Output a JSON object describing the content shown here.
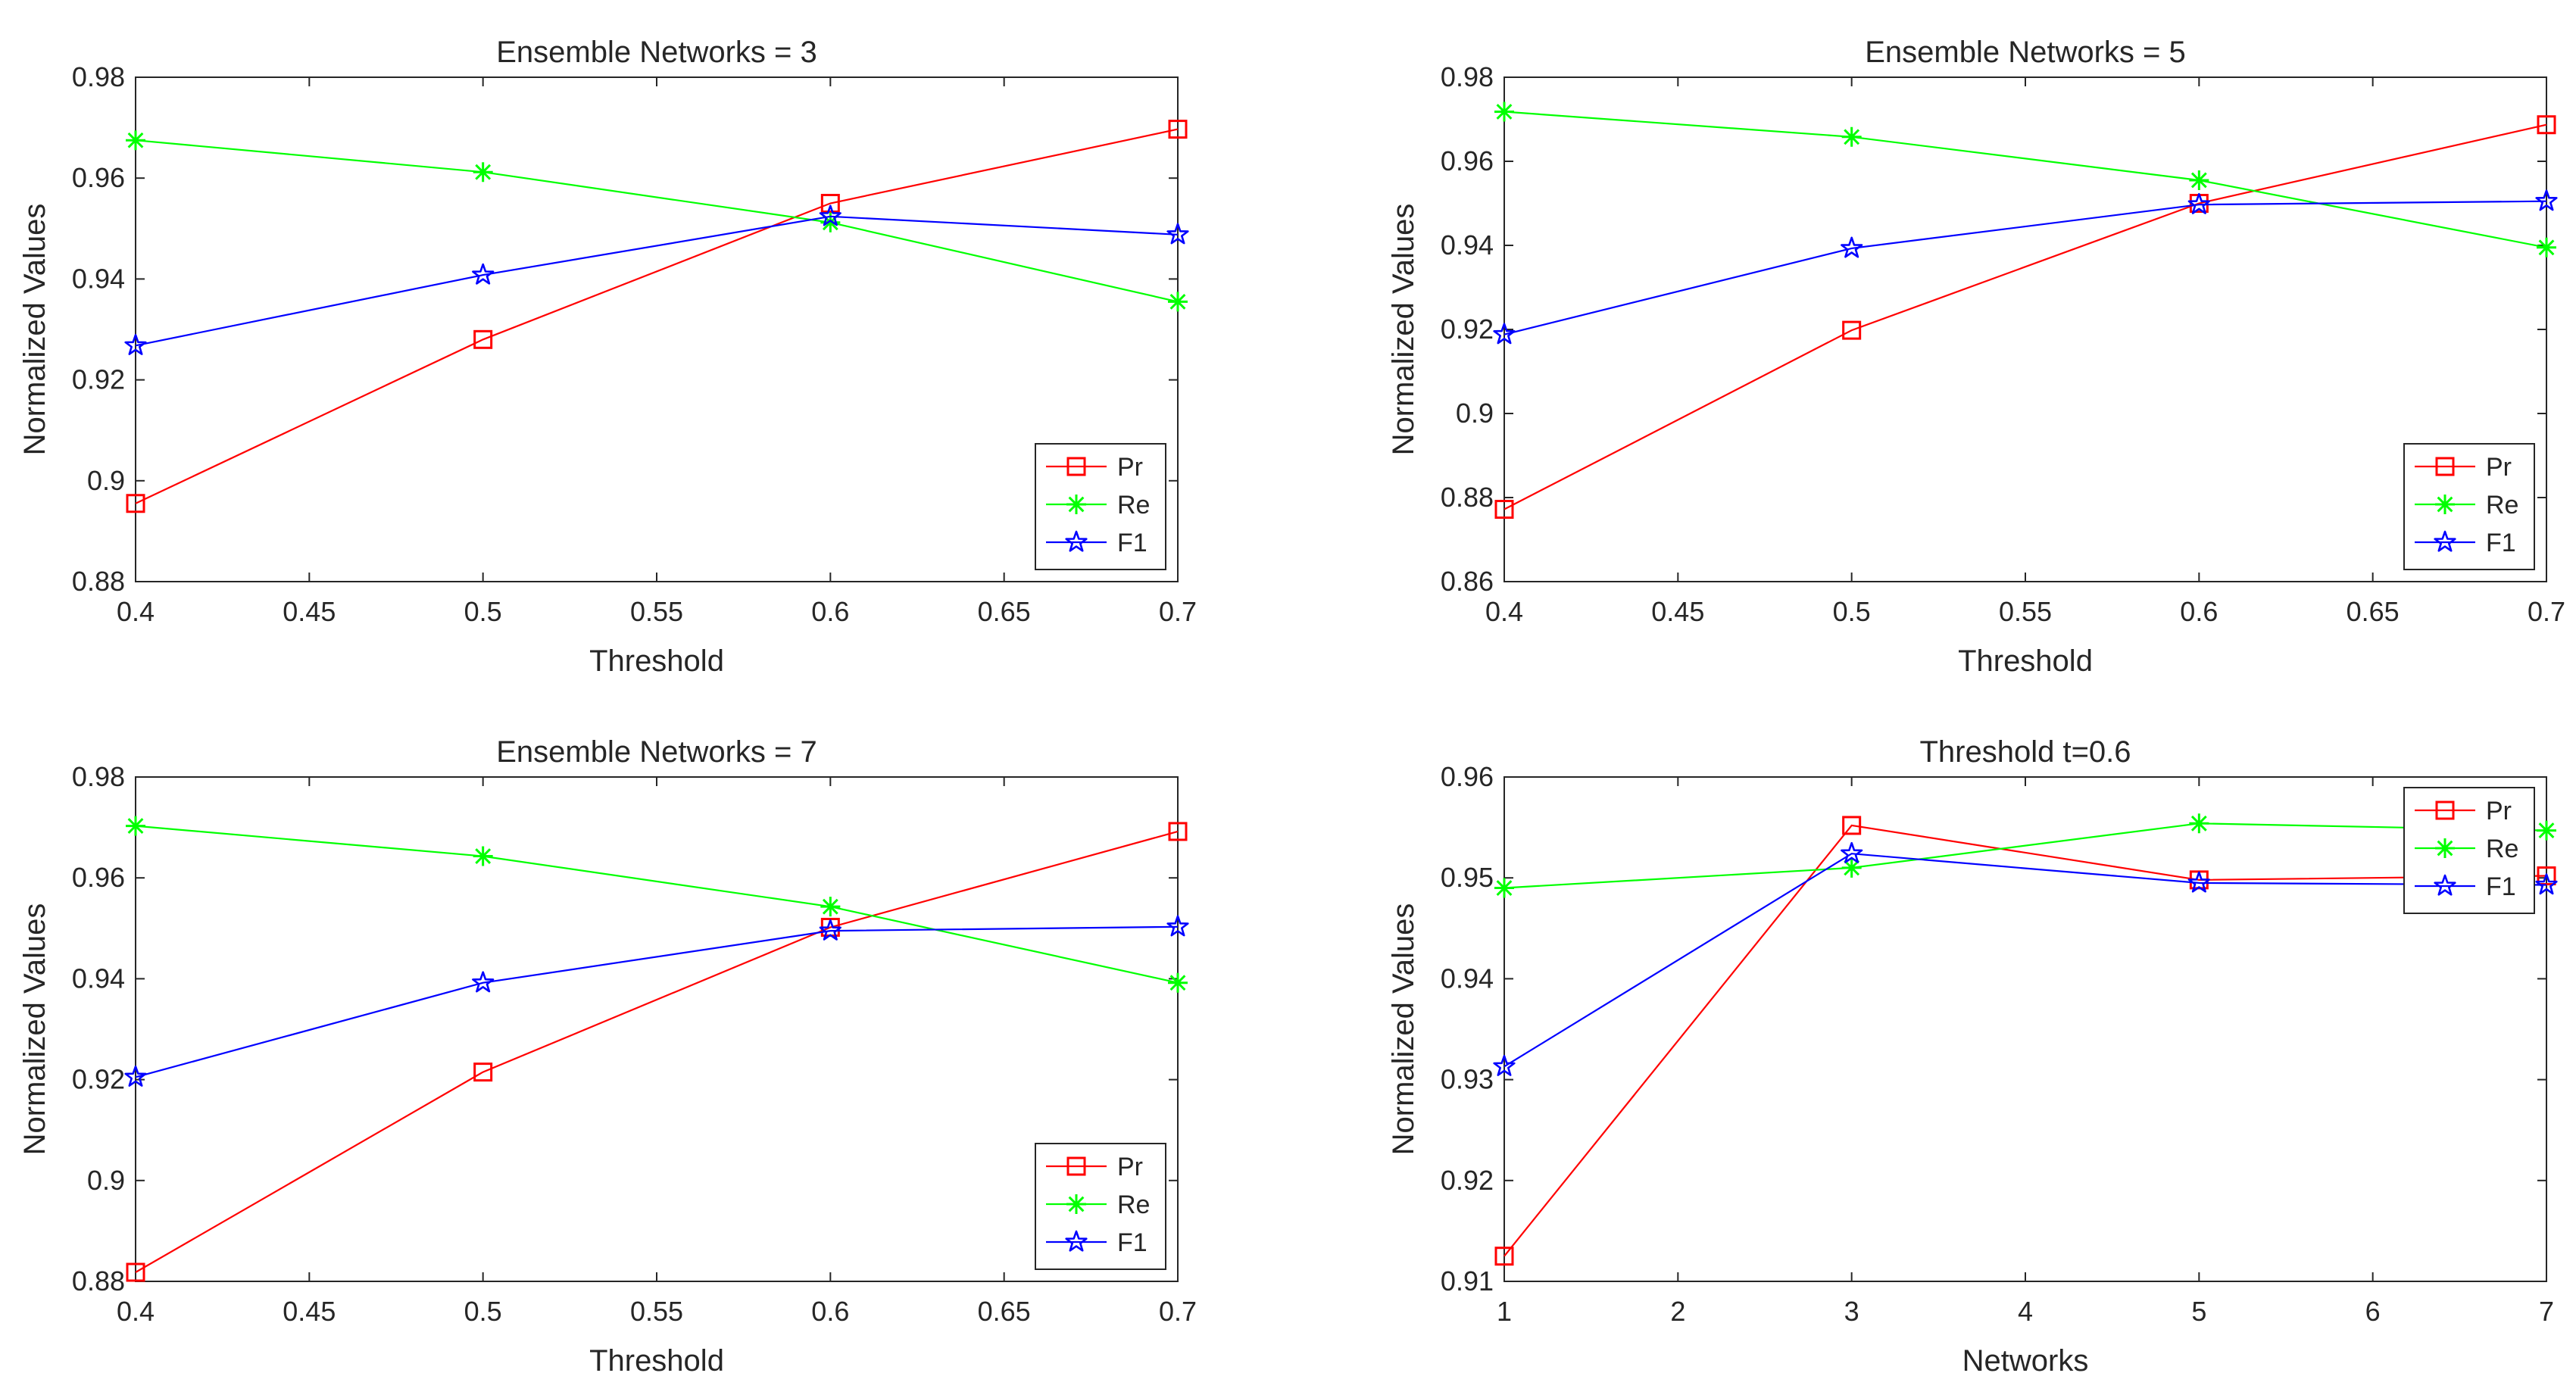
{
  "chart_data": [
    {
      "type": "line",
      "title": "Ensemble Networks = 3",
      "xlabel": "Threshold",
      "ylabel": "Normalized Values",
      "xlim": [
        0.4,
        0.7
      ],
      "ylim": [
        0.88,
        0.98
      ],
      "xticks": [
        0.4,
        0.45,
        0.5,
        0.55,
        0.6,
        0.65,
        0.7
      ],
      "xtick_labels": [
        "0.4",
        "0.45",
        "0.5",
        "0.55",
        "0.6",
        "0.65",
        "0.7"
      ],
      "yticks": [
        0.88,
        0.9,
        0.92,
        0.94,
        0.96,
        0.98
      ],
      "ytick_labels": [
        "0.88",
        "0.9",
        "0.92",
        "0.94",
        "0.96",
        "0.98"
      ],
      "x": [
        0.4,
        0.5,
        0.6,
        0.7
      ],
      "legend_position": "bottom-right",
      "series": [
        {
          "name": "Pr",
          "color": "#ff0000",
          "marker": "square",
          "values": [
            0.8955,
            0.928,
            0.955,
            0.9697
          ]
        },
        {
          "name": "Re",
          "color": "#00ff00",
          "marker": "asterisk",
          "values": [
            0.9675,
            0.9612,
            0.9512,
            0.9355
          ]
        },
        {
          "name": "F1",
          "color": "#0000ff",
          "marker": "star",
          "values": [
            0.9268,
            0.9408,
            0.9524,
            0.9488
          ]
        }
      ]
    },
    {
      "type": "line",
      "title": "Ensemble Networks = 5",
      "xlabel": "Threshold",
      "ylabel": "Normalized Values",
      "xlim": [
        0.4,
        0.7
      ],
      "ylim": [
        0.86,
        0.98
      ],
      "xticks": [
        0.4,
        0.45,
        0.5,
        0.55,
        0.6,
        0.65,
        0.7
      ],
      "xtick_labels": [
        "0.4",
        "0.45",
        "0.5",
        "0.55",
        "0.6",
        "0.65",
        "0.7"
      ],
      "yticks": [
        0.86,
        0.88,
        0.9,
        0.92,
        0.94,
        0.96,
        0.98
      ],
      "ytick_labels": [
        "0.86",
        "0.88",
        "0.9",
        "0.92",
        "0.94",
        "0.96",
        "0.98"
      ],
      "x": [
        0.4,
        0.5,
        0.6,
        0.7
      ],
      "legend_position": "bottom-right",
      "series": [
        {
          "name": "Pr",
          "color": "#ff0000",
          "marker": "square",
          "values": [
            0.8772,
            0.9198,
            0.95,
            0.9687
          ]
        },
        {
          "name": "Re",
          "color": "#00ff00",
          "marker": "asterisk",
          "values": [
            0.9718,
            0.9658,
            0.9555,
            0.9395
          ]
        },
        {
          "name": "F1",
          "color": "#0000ff",
          "marker": "star",
          "values": [
            0.9188,
            0.9393,
            0.9497,
            0.9505
          ]
        }
      ]
    },
    {
      "type": "line",
      "title": "Ensemble Networks = 7",
      "xlabel": "Threshold",
      "ylabel": "Normalized Values",
      "xlim": [
        0.4,
        0.7
      ],
      "ylim": [
        0.88,
        0.98
      ],
      "xticks": [
        0.4,
        0.45,
        0.5,
        0.55,
        0.6,
        0.65,
        0.7
      ],
      "xtick_labels": [
        "0.4",
        "0.45",
        "0.5",
        "0.55",
        "0.6",
        "0.65",
        "0.7"
      ],
      "yticks": [
        0.88,
        0.9,
        0.92,
        0.94,
        0.96,
        0.98
      ],
      "ytick_labels": [
        "0.88",
        "0.9",
        "0.92",
        "0.94",
        "0.96",
        "0.98"
      ],
      "x": [
        0.4,
        0.5,
        0.6,
        0.7
      ],
      "legend_position": "bottom-right",
      "series": [
        {
          "name": "Pr",
          "color": "#ff0000",
          "marker": "square",
          "values": [
            0.8818,
            0.9215,
            0.9502,
            0.9692
          ]
        },
        {
          "name": "Re",
          "color": "#00ff00",
          "marker": "asterisk",
          "values": [
            0.9703,
            0.9643,
            0.9543,
            0.9392
          ]
        },
        {
          "name": "F1",
          "color": "#0000ff",
          "marker": "star",
          "values": [
            0.9205,
            0.9392,
            0.9495,
            0.9503
          ]
        }
      ]
    },
    {
      "type": "line",
      "title": "Threshold t=0.6",
      "xlabel": "Networks",
      "ylabel": "Normalized Values",
      "xlim": [
        1,
        7
      ],
      "ylim": [
        0.91,
        0.96
      ],
      "xticks": [
        1,
        2,
        3,
        4,
        5,
        6,
        7
      ],
      "xtick_labels": [
        "1",
        "2",
        "3",
        "4",
        "5",
        "6",
        "7"
      ],
      "yticks": [
        0.91,
        0.92,
        0.93,
        0.94,
        0.95,
        0.96
      ],
      "ytick_labels": [
        "0.91",
        "0.92",
        "0.93",
        "0.94",
        "0.95",
        "0.96"
      ],
      "x": [
        1,
        3,
        5,
        7
      ],
      "legend_position": "top-right",
      "series": [
        {
          "name": "Pr",
          "color": "#ff0000",
          "marker": "square",
          "values": [
            0.9125,
            0.9552,
            0.9498,
            0.9502
          ]
        },
        {
          "name": "Re",
          "color": "#00ff00",
          "marker": "asterisk",
          "values": [
            0.949,
            0.951,
            0.9554,
            0.9547
          ]
        },
        {
          "name": "F1",
          "color": "#0000ff",
          "marker": "star",
          "values": [
            0.9313,
            0.9524,
            0.9495,
            0.9493
          ]
        }
      ]
    }
  ]
}
